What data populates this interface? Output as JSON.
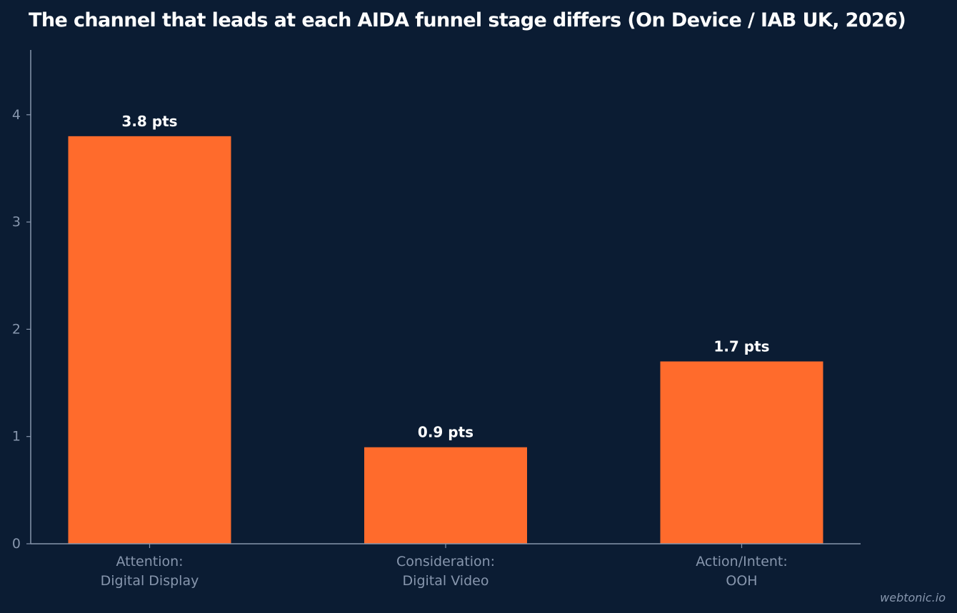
{
  "chart_data": {
    "type": "bar",
    "title": "The channel that leads at each AIDA funnel stage differs (On Device / IAB UK, 2026)",
    "categories": [
      [
        "Attention:",
        "Digital Display"
      ],
      [
        "Consideration:",
        "Digital Video"
      ],
      [
        "Action/Intent:",
        "OOH"
      ]
    ],
    "values": [
      3.8,
      0.9,
      1.7
    ],
    "data_labels": [
      "3.8 pts",
      "0.9 pts",
      "1.7 pts"
    ],
    "xlabel": "",
    "ylabel": "",
    "ylim": [
      0,
      4
    ],
    "yticks": [
      0,
      1,
      2,
      3,
      4
    ],
    "grid": false,
    "bar_color": "#ff6b2c",
    "background": "#0b1c33",
    "axis_color": "#8796ad"
  },
  "watermark": "webtonic.io"
}
